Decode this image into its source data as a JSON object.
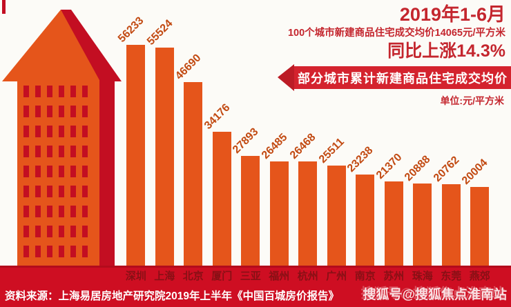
{
  "header": {
    "period": "2019年1-6月",
    "subtitle": "100个城市新建商品住宅成交均价14065元/平方米",
    "yoy": "同比上涨14.3%"
  },
  "banner": {
    "label": "部分城市累计新建商品住宅成交均价",
    "unit": "单位:元/平方米"
  },
  "chart_data": {
    "type": "bar",
    "title": "部分城市累计新建商品住宅成交均价",
    "unit": "元/平方米",
    "categories": [
      "深圳",
      "上海",
      "北京",
      "厦门",
      "三亚",
      "福州",
      "杭州",
      "广州",
      "南京",
      "苏州",
      "珠海",
      "东莞",
      "燕郊"
    ],
    "values": [
      56233,
      55524,
      46690,
      34176,
      27893,
      26485,
      26468,
      25511,
      23238,
      21370,
      20888,
      20762,
      20004
    ],
    "ylim": [
      0,
      56233
    ],
    "value_labels_rotated_degrees": -45,
    "grid": false,
    "legend": false
  },
  "footer": {
    "source": "资料来源：上海易居房地产研究院2019年上半年《中国百城房价报告》",
    "watermark": "搜狐号@搜狐焦点淮南站"
  },
  "colors": {
    "bar": "#e5551b",
    "building_orange": "#e5551b",
    "accent_dark_red": "#c30e22",
    "band_red": "#ce0e22",
    "headline_red": "#c4262e",
    "ribbon_red": "#d4232e",
    "ribbon_tip_red": "#bc1c26",
    "city_label_red": "#871015",
    "value_label_red": "#c24a12",
    "source_text": "#ffffff"
  }
}
